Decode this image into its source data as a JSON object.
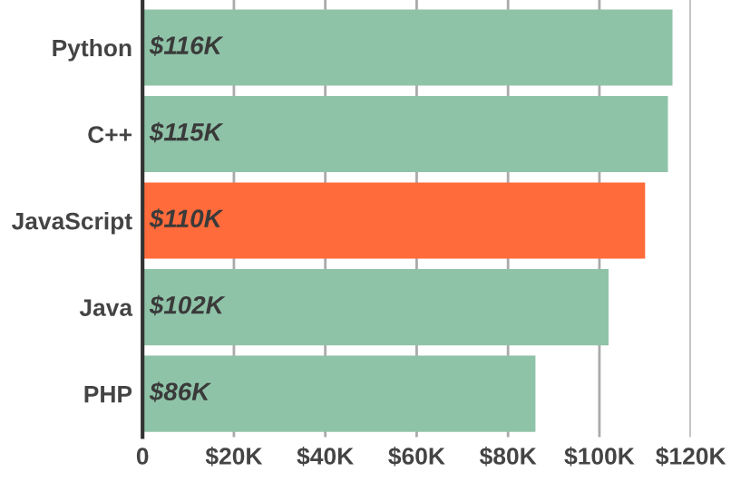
{
  "chart_data": {
    "type": "bar",
    "orientation": "horizontal",
    "categories": [
      "Python",
      "C++",
      "JavaScript",
      "Java",
      "PHP"
    ],
    "values": [
      116,
      115,
      110,
      102,
      86
    ],
    "colors": [
      "#8fc3a8",
      "#8fc3a8",
      "#ff6b3b",
      "#8fc3a8",
      "#8fc3a8"
    ],
    "value_labels": [
      "$116K",
      "$115K",
      "$110K",
      "$102K",
      "$86K"
    ],
    "xlim": [
      0,
      120
    ],
    "xticks": [
      0,
      {
        "value": 20,
        "label": "$20K"
      },
      {
        "value": 40,
        "label": "$40K"
      },
      {
        "value": 60,
        "label": "$60K"
      },
      {
        "value": 80,
        "label": "$80K"
      },
      {
        "value": 100,
        "label": "$100K"
      },
      {
        "value": 120,
        "label": "$120K"
      }
    ],
    "grid": "x",
    "legend": false
  }
}
